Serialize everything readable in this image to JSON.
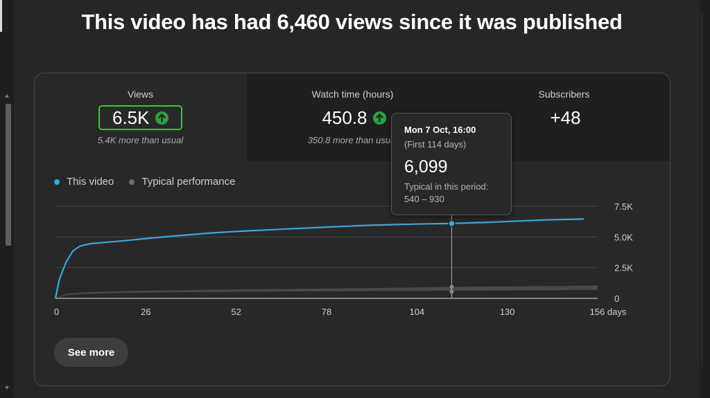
{
  "headline": "This video has had 6,460 views since it was published",
  "metrics": [
    {
      "label": "Views",
      "value": "6.5K",
      "note": "5.4K more than usual",
      "trend": "up"
    },
    {
      "label": "Watch time (hours)",
      "value": "450.8",
      "note": "350.8 more than usual",
      "trend": "up"
    },
    {
      "label": "Subscribers",
      "value": "+48",
      "note": ""
    }
  ],
  "legend": [
    {
      "label": "This video",
      "color": "#3ea6d8"
    },
    {
      "label": "Typical performance",
      "color": "#6e6e6e"
    }
  ],
  "tooltip": {
    "date": "Mon 7 Oct, 16:00",
    "period": "(First 114 days)",
    "value": "6,099",
    "typical_label": "Typical in this period:",
    "typical_range": "540 – 930"
  },
  "see_more_label": "See more",
  "chart_data": {
    "type": "line",
    "x_ticks": [
      "0",
      "26",
      "52",
      "78",
      "104",
      "130",
      "156 days"
    ],
    "x_tick_values": [
      0,
      26,
      52,
      78,
      104,
      130,
      156
    ],
    "y_ticks": [
      "0",
      "2.5K",
      "5.0K",
      "7.5K"
    ],
    "y_tick_values": [
      0,
      2500,
      5000,
      7500
    ],
    "xlim": [
      0,
      156
    ],
    "ylim": [
      0,
      7500
    ],
    "series": [
      {
        "name": "This video",
        "color": "#3ea6d8",
        "x": [
          0,
          0.5,
          1,
          2,
          3,
          4,
          5,
          7,
          10,
          15,
          20,
          26,
          35,
          45,
          52,
          65,
          78,
          90,
          104,
          114,
          125,
          140,
          152
        ],
        "y": [
          0,
          700,
          1400,
          2200,
          2900,
          3400,
          3850,
          4250,
          4450,
          4580,
          4700,
          4870,
          5100,
          5330,
          5450,
          5630,
          5800,
          5950,
          6050,
          6099,
          6200,
          6380,
          6460
        ]
      },
      {
        "name": "Typical performance",
        "color": "#6e6e6e",
        "x": [
          0,
          3,
          8,
          15,
          26,
          40,
          52,
          65,
          78,
          90,
          104,
          114,
          130,
          145,
          156
        ],
        "low": [
          0,
          250,
          350,
          420,
          470,
          510,
          540,
          560,
          580,
          590,
          600,
          620,
          640,
          660,
          680
        ],
        "high": [
          0,
          380,
          480,
          560,
          620,
          680,
          720,
          760,
          800,
          840,
          880,
          930,
          970,
          1010,
          1050
        ]
      }
    ],
    "highlight": {
      "x": 114,
      "y": 6099,
      "typical_low": 540,
      "typical_high": 930
    }
  }
}
